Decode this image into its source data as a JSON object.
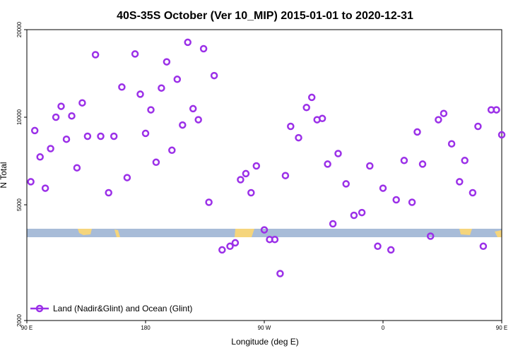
{
  "chart_data": {
    "type": "scatter",
    "title": "40S-35S October (Ver 10_MIP)   2015-01-01 to 2020-12-31",
    "xlabel": "Longitude (deg E)",
    "ylabel": "N Total",
    "yscale": "log",
    "xlim": [
      90,
      270
    ],
    "ylim": [
      2000,
      20000
    ],
    "x_ticks": [
      {
        "value": 90,
        "label": "90 E"
      },
      {
        "value": 135,
        "label": "180"
      },
      {
        "value": 180,
        "label": "90 W"
      },
      {
        "value": 225,
        "label": "0"
      },
      {
        "value": 270,
        "label": "90 E"
      }
    ],
    "y_ticks": [
      {
        "value": 2000,
        "label": "2000"
      },
      {
        "value": 5000,
        "label": "5000"
      },
      {
        "value": 10000,
        "label": "10000"
      },
      {
        "value": 20000,
        "label": "20000"
      }
    ],
    "grid": false,
    "legend_position": "bottom-left",
    "colors": {
      "series": "#9b30e8",
      "land": "#f5d57c",
      "ocean": "#a8bcd8"
    },
    "series": [
      {
        "name": "Land (Nadir&Glint) and Ocean (Glint)",
        "x": [
          91.5,
          93,
          95,
          97,
          99,
          101,
          103,
          105,
          107,
          109,
          111,
          113,
          116,
          118,
          121,
          123,
          126,
          128,
          131,
          133,
          135,
          137,
          139,
          141,
          143,
          145,
          147,
          149,
          151,
          153,
          155,
          157,
          159,
          161,
          164,
          167,
          169,
          171,
          173,
          175,
          177,
          180,
          182,
          184,
          186,
          188,
          190,
          193,
          196,
          198,
          200,
          202,
          204,
          206,
          208,
          211,
          214,
          217,
          220,
          223,
          225,
          228,
          230,
          233,
          236,
          238,
          240,
          243,
          246,
          248,
          251,
          254,
          256,
          259,
          261,
          263,
          266,
          268,
          270
        ],
        "y": [
          6000,
          9000,
          7300,
          5700,
          7800,
          10000,
          10900,
          8400,
          10100,
          6700,
          11200,
          8600,
          16400,
          8600,
          5500,
          8600,
          12700,
          6200,
          16500,
          12000,
          8800,
          10600,
          7000,
          12600,
          15500,
          7700,
          13500,
          9400,
          18100,
          10700,
          9800,
          17200,
          5100,
          13900,
          3500,
          3600,
          3700,
          6100,
          6400,
          5500,
          6800,
          4100,
          3800,
          3800,
          2900,
          6300,
          9300,
          8500,
          10800,
          11700,
          9800,
          9900,
          6900,
          4300,
          7500,
          5900,
          4600,
          4700,
          6800,
          3600,
          5700,
          3500,
          5200,
          7100,
          5100,
          8900,
          6900,
          3900,
          9800,
          10300,
          8100,
          6000,
          7100,
          5500,
          9300,
          3600,
          10600,
          10600,
          8700
        ]
      }
    ],
    "annotations": []
  }
}
